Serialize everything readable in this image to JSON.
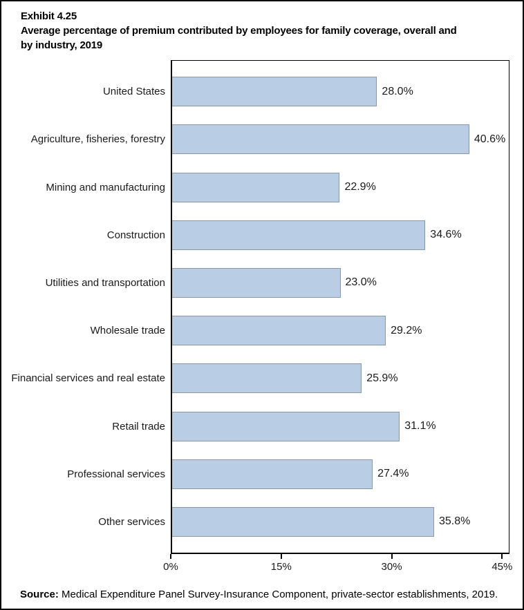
{
  "header": {
    "title_lines": [
      "Exhibit 4.25",
      "Average percentage of premium contributed by employees for family coverage, overall and",
      "by industry, 2019"
    ]
  },
  "chart_data": {
    "type": "bar",
    "orientation": "horizontal",
    "title": "Average percentage of premium contributed by employees for family coverage, overall and by industry, 2019",
    "categories": [
      "United States",
      "Agriculture, fisheries, forestry",
      "Mining and manufacturing",
      "Construction",
      "Utilities and transportation",
      "Wholesale trade",
      "Financial services and real estate",
      "Retail trade",
      "Professional services",
      "Other services"
    ],
    "values": [
      28.0,
      40.6,
      22.9,
      34.6,
      23.0,
      29.2,
      25.9,
      31.1,
      27.4,
      35.8
    ],
    "value_labels": [
      "28.0%",
      "40.6%",
      "22.9%",
      "34.6%",
      "23.0%",
      "29.2%",
      "25.9%",
      "31.1%",
      "27.4%",
      "35.8%"
    ],
    "xlabel": "",
    "ylabel": "",
    "x_ticks": [
      {
        "value": 0,
        "label": "0%"
      },
      {
        "value": 15,
        "label": "15%"
      },
      {
        "value": 30,
        "label": "30%"
      },
      {
        "value": 45,
        "label": "45%"
      }
    ],
    "xlim": [
      0,
      46
    ],
    "grid": false,
    "legend": false,
    "bar_fill_color": "#b9cde4",
    "bar_border_color": "#8a97a5",
    "axis_color": "#000000"
  },
  "footer": {
    "source_label": "Source:",
    "source_text": " Medical Expenditure Panel Survey-Insurance Component, private-sector establishments, 2019."
  }
}
